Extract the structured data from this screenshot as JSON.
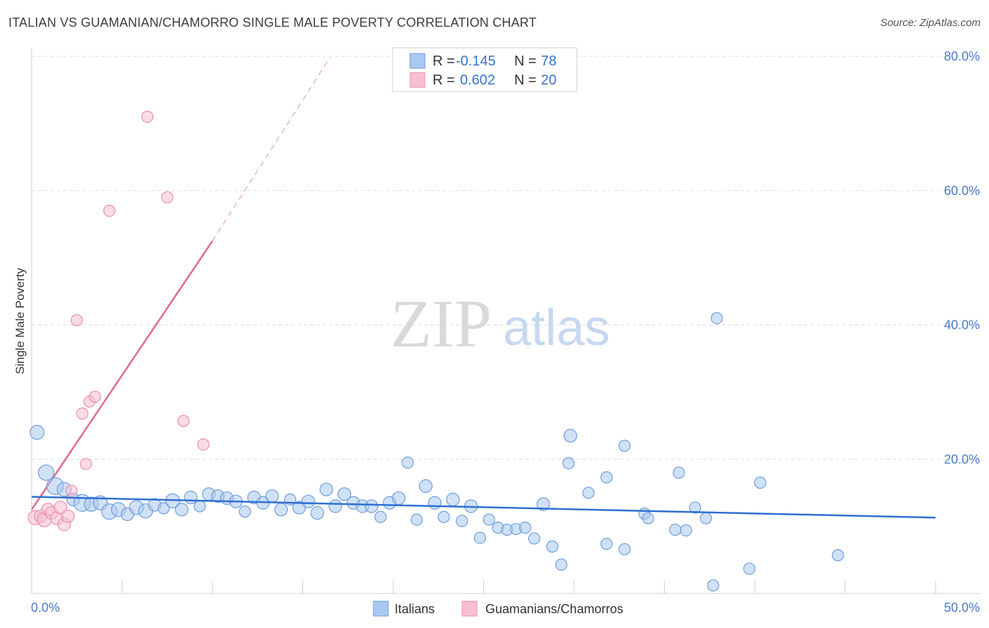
{
  "title": "ITALIAN VS GUAMANIAN/CHAMORRO SINGLE MALE POVERTY CORRELATION CHART",
  "source": "Source: ZipAtlas.com",
  "watermark": {
    "zip": "ZIP",
    "atlas": "atlas"
  },
  "colors": {
    "blue_fill": "#a9c8ef",
    "blue_stroke": "#6f9ede",
    "blue_line": "#2f6fd1",
    "pink_fill": "#f7bfd0",
    "pink_stroke": "#eb8fab",
    "pink_line": "#e0688f",
    "grid": "#dddddd",
    "axis_label": "#4a7cc9"
  },
  "legend": {
    "rows": [
      {
        "r_label": "R =",
        "r_value": "-0.145",
        "n_label": "N =",
        "n_value": "78"
      },
      {
        "r_label": "R =",
        "r_value": "0.602",
        "n_label": "N =",
        "n_value": "20"
      }
    ]
  },
  "chart_data": {
    "type": "scatter",
    "title": "ITALIAN VS GUAMANIAN/CHAMORRO SINGLE MALE POVERTY CORRELATION CHART",
    "xlabel": "",
    "ylabel": "Single Male Poverty",
    "xlim": [
      0,
      50
    ],
    "ylim": [
      0,
      80
    ],
    "x_tick_labels": [
      "0.0%",
      "50.0%"
    ],
    "y_ticks": [
      20,
      40,
      60,
      80
    ],
    "y_tick_labels": [
      "20.0%",
      "40.0%",
      "60.0%",
      "80.0%"
    ],
    "grid": true,
    "legend_position": "top-center",
    "series": [
      {
        "name": "Italians",
        "color": "#a9c8ef",
        "r": -0.145,
        "n": 78,
        "trend": {
          "x": [
            0,
            50
          ],
          "y": [
            14.4,
            11.3
          ]
        },
        "points": [
          [
            0.3,
            24.0,
            10
          ],
          [
            0.8,
            18.0,
            11
          ],
          [
            1.3,
            16.0,
            12
          ],
          [
            1.8,
            15.5,
            10
          ],
          [
            2.3,
            14.0,
            9
          ],
          [
            2.8,
            13.5,
            12
          ],
          [
            3.3,
            13.3,
            10
          ],
          [
            3.8,
            13.5,
            10
          ],
          [
            4.3,
            12.2,
            11
          ],
          [
            4.8,
            12.5,
            10
          ],
          [
            5.3,
            11.8,
            9
          ],
          [
            5.8,
            12.8,
            10
          ],
          [
            6.3,
            12.3,
            10
          ],
          [
            6.8,
            13.2,
            9
          ],
          [
            7.3,
            12.7,
            8
          ],
          [
            7.8,
            13.8,
            10
          ],
          [
            8.3,
            12.5,
            9
          ],
          [
            8.8,
            14.3,
            9
          ],
          [
            9.3,
            13.0,
            8
          ],
          [
            9.8,
            14.8,
            9
          ],
          [
            10.3,
            14.5,
            9
          ],
          [
            10.8,
            14.2,
            9
          ],
          [
            11.3,
            13.7,
            9
          ],
          [
            11.8,
            12.2,
            8
          ],
          [
            12.3,
            14.3,
            9
          ],
          [
            12.8,
            13.5,
            9
          ],
          [
            13.3,
            14.5,
            9
          ],
          [
            13.8,
            12.5,
            9
          ],
          [
            14.3,
            14.0,
            8
          ],
          [
            14.8,
            12.8,
            9
          ],
          [
            15.3,
            13.7,
            9
          ],
          [
            15.8,
            12.0,
            9
          ],
          [
            16.3,
            15.5,
            9
          ],
          [
            16.8,
            13.0,
            9
          ],
          [
            17.3,
            14.8,
            9
          ],
          [
            17.8,
            13.5,
            9
          ],
          [
            18.3,
            13.0,
            9
          ],
          [
            18.8,
            13.0,
            9
          ],
          [
            19.3,
            11.4,
            8
          ],
          [
            19.8,
            13.5,
            9
          ],
          [
            20.3,
            14.2,
            9
          ],
          [
            20.8,
            19.5,
            8
          ],
          [
            21.3,
            11.0,
            8
          ],
          [
            21.8,
            16.0,
            9
          ],
          [
            22.3,
            13.5,
            9
          ],
          [
            22.8,
            11.4,
            8
          ],
          [
            23.3,
            14.0,
            9
          ],
          [
            23.8,
            10.8,
            8
          ],
          [
            24.3,
            13.0,
            9
          ],
          [
            24.8,
            8.3,
            8
          ],
          [
            25.3,
            11.0,
            8
          ],
          [
            25.8,
            9.8,
            8
          ],
          [
            26.3,
            9.5,
            8
          ],
          [
            26.8,
            9.6,
            8
          ],
          [
            27.3,
            9.8,
            8
          ],
          [
            27.8,
            8.2,
            8
          ],
          [
            28.3,
            13.3,
            9
          ],
          [
            28.8,
            7.0,
            8
          ],
          [
            29.3,
            4.3,
            8
          ],
          [
            29.8,
            23.5,
            9
          ],
          [
            29.7,
            19.4,
            8
          ],
          [
            30.8,
            15.0,
            8
          ],
          [
            31.8,
            7.4,
            8
          ],
          [
            31.8,
            17.3,
            8
          ],
          [
            32.8,
            6.6,
            8
          ],
          [
            32.8,
            22.0,
            8
          ],
          [
            33.9,
            11.9,
            8
          ],
          [
            34.1,
            11.2,
            8
          ],
          [
            35.8,
            18.0,
            8
          ],
          [
            35.6,
            9.5,
            8
          ],
          [
            36.2,
            9.4,
            8
          ],
          [
            36.7,
            12.8,
            8
          ],
          [
            37.3,
            11.2,
            8
          ],
          [
            37.7,
            1.2,
            8
          ],
          [
            37.9,
            41.0,
            8
          ],
          [
            39.7,
            3.7,
            8
          ],
          [
            40.3,
            16.5,
            8
          ],
          [
            44.6,
            5.7,
            8
          ]
        ]
      },
      {
        "name": "Guamanians/Chamorros",
        "color": "#f7bfd0",
        "r": 0.602,
        "n": 20,
        "trend": {
          "x": [
            0,
            10
          ],
          "y": [
            12.5,
            52.5
          ]
        },
        "trend_dashed": {
          "x": [
            10,
            16.5
          ],
          "y": [
            52.5,
            79.8
          ]
        },
        "points": [
          [
            0.2,
            11.3,
            10
          ],
          [
            0.5,
            11.5,
            9
          ],
          [
            0.7,
            11.0,
            10
          ],
          [
            0.9,
            12.5,
            9
          ],
          [
            1.1,
            12.0,
            9
          ],
          [
            1.4,
            11.2,
            9
          ],
          [
            1.6,
            12.8,
            9
          ],
          [
            1.8,
            10.3,
            9
          ],
          [
            2.0,
            11.5,
            9
          ],
          [
            2.2,
            15.3,
            8
          ],
          [
            2.5,
            40.7,
            8
          ],
          [
            2.8,
            26.8,
            8
          ],
          [
            3.0,
            19.3,
            8
          ],
          [
            3.2,
            28.6,
            8
          ],
          [
            3.5,
            29.3,
            8
          ],
          [
            4.3,
            57.0,
            8
          ],
          [
            6.4,
            71.0,
            8
          ],
          [
            7.5,
            59.0,
            8
          ],
          [
            8.4,
            25.7,
            8
          ],
          [
            9.5,
            22.2,
            8
          ]
        ]
      }
    ]
  }
}
